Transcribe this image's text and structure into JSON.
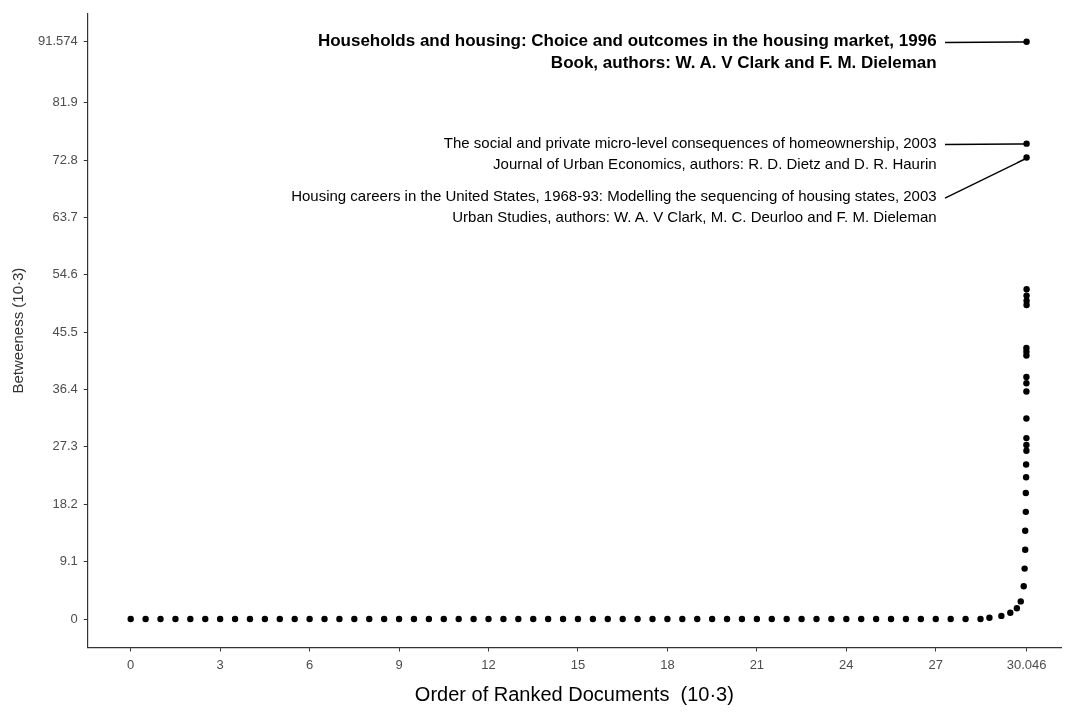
{
  "chart_data": {
    "type": "scatter",
    "xlabel": "Order of Ranked Documents  (10·3)",
    "ylabel": "Betweeness (10·3)",
    "xlim": [
      -1.44,
      31.2
    ],
    "ylim": [
      -4.5,
      96
    ],
    "xticks": [
      0,
      3,
      6,
      9,
      12,
      15,
      18,
      21,
      24,
      27,
      30.046
    ],
    "yticks": [
      0,
      9.1,
      18.2,
      27.3,
      36.4,
      45.5,
      54.6,
      63.7,
      72.8,
      81.9,
      91.574
    ],
    "grid": false,
    "legend": false,
    "marker": "circle",
    "series": [
      {
        "color": "#000000",
        "x": [
          0,
          0.5,
          1,
          1.5,
          2,
          2.5,
          3,
          3.5,
          4,
          4.5,
          5,
          5.5,
          6,
          6.5,
          7,
          7.5,
          8,
          8.5,
          9,
          9.5,
          10,
          10.5,
          11,
          11.5,
          12,
          12.5,
          13,
          13.5,
          14,
          14.5,
          15,
          15.5,
          16,
          16.5,
          17,
          17.5,
          18,
          18.5,
          19,
          19.5,
          20,
          20.5,
          21,
          21.5,
          22,
          22.5,
          23,
          23.5,
          24,
          24.5,
          25,
          25.5,
          26,
          26.5,
          27,
          27.5,
          28,
          28.5,
          28.8,
          29.2,
          29.5,
          29.72,
          29.85,
          29.95,
          29.98,
          30,
          30,
          30.02,
          30.02,
          30.03,
          30.03,
          30.04,
          30.04,
          30.04,
          30.04,
          30.04,
          30.04,
          30.04,
          30.04,
          30.04,
          30.04,
          30.046,
          30.046,
          30.046,
          30.046,
          30.046,
          30.046,
          30.046
        ],
        "values": [
          0,
          0,
          0,
          0,
          0,
          0,
          0,
          0,
          0,
          0,
          0,
          0,
          0,
          0,
          0,
          0,
          0,
          0,
          0,
          0,
          0,
          0,
          0,
          0,
          0,
          0,
          0,
          0,
          0,
          0,
          0,
          0,
          0,
          0,
          0,
          0,
          0,
          0,
          0,
          0,
          0,
          0,
          0,
          0,
          0,
          0,
          0,
          0,
          0,
          0,
          0,
          0,
          0,
          0,
          0,
          0,
          0,
          0,
          0.2,
          0.5,
          1,
          1.7,
          2.8,
          5.2,
          8,
          11,
          14,
          17,
          20,
          22.5,
          24.5,
          26.7,
          27.6,
          28.7,
          31.8,
          36.1,
          37.4,
          38.4,
          41.8,
          42.4,
          43,
          49.8,
          50.5,
          51.3,
          52.3,
          73.2,
          75.4,
          91.574
        ]
      }
    ],
    "annotations": [
      "Households and housing: Choice and outcomes in the housing market, 1996\nBook, authors: W. A. V Clark and F. M. Dieleman",
      {
        "text": "The social and private micro-level consequences of homeownership, 2003\nJournal of Urban Economics, authors: R. D. Dietz and D. R. Haurin",
        "x": 30.046,
        "y": 75.4
      },
      {
        "text": "Housing careers in the United States, 1968-93: Modelling the sequencing of housing states, 2003\nUrban Studies, authors: W. A. V Clark, M. C. Deurloo and F. M. Dieleman",
        "x": 30.046,
        "y": 73.2
      }
    ]
  }
}
